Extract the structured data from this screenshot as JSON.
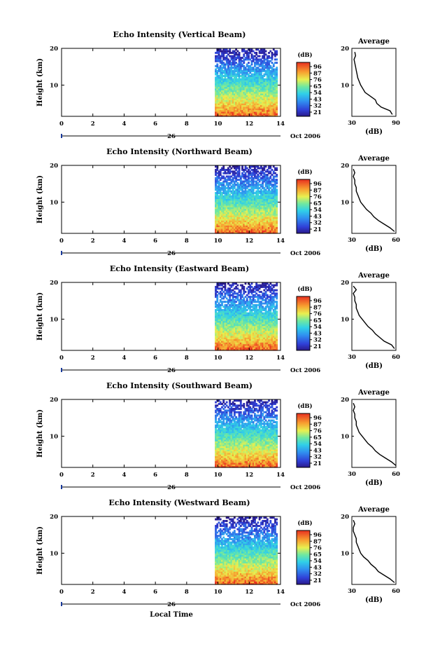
{
  "figure": {
    "xlabel": "Local Time",
    "date_label": "Oct 2006",
    "day_label": "26",
    "colorbar_unit": "(dB)",
    "avg_title": "Average",
    "avg_xlabel": "(dB)"
  },
  "chart_data": [
    {
      "type": "heatmap",
      "title": "Echo Intensity (Vertical Beam)",
      "ylabel": "Height (km)",
      "xlim": [
        0,
        14
      ],
      "ylim": [
        1.5,
        20
      ],
      "x_ticks": [
        "0",
        "2",
        "4",
        "6",
        "8",
        "10",
        "12",
        "14"
      ],
      "y_ticks": [
        "20",
        "10"
      ],
      "data_x_range": [
        9.8,
        13.8
      ],
      "colorbar": {
        "unit": "(dB)",
        "ticks": [
          "96",
          "87",
          "76",
          "65",
          "54",
          "43",
          "32",
          "21"
        ]
      },
      "average_profile": {
        "xlabel": "(dB)",
        "x_ticks": [
          "30",
          "90"
        ],
        "y_ticks": [
          "20",
          "10"
        ],
        "height_km": [
          2,
          3,
          4,
          5,
          6,
          7,
          8,
          9,
          10,
          11,
          12,
          13,
          14,
          15,
          16,
          17,
          18,
          19
        ],
        "db": [
          85,
          82,
          70,
          64,
          62,
          55,
          48,
          45,
          42,
          40,
          38,
          37,
          36,
          35,
          34,
          33,
          35,
          34
        ]
      }
    },
    {
      "type": "heatmap",
      "title": "Echo Intensity (Northward Beam)",
      "ylabel": "Height (km)",
      "xlim": [
        0,
        14
      ],
      "ylim": [
        1.5,
        20
      ],
      "x_ticks": [
        "0",
        "2",
        "4",
        "6",
        "8",
        "10",
        "12",
        "14"
      ],
      "y_ticks": [
        "20",
        "10"
      ],
      "data_x_range": [
        9.8,
        13.8
      ],
      "colorbar": {
        "unit": "(dB)",
        "ticks": [
          "96",
          "87",
          "76",
          "65",
          "54",
          "43",
          "32",
          "21"
        ]
      },
      "average_profile": {
        "xlabel": "(dB)",
        "x_ticks": [
          "30",
          "60"
        ],
        "y_ticks": [
          "20",
          "10"
        ],
        "height_km": [
          2,
          3,
          4,
          5,
          6,
          7,
          8,
          9,
          10,
          11,
          12,
          13,
          14,
          15,
          16,
          17,
          18,
          19
        ],
        "db": [
          59,
          56,
          52,
          48,
          45,
          43,
          40,
          38,
          36,
          35,
          34,
          33,
          33,
          32,
          32,
          31,
          32,
          31
        ]
      }
    },
    {
      "type": "heatmap",
      "title": "Echo Intensity (Eastward Beam)",
      "ylabel": "Height (km)",
      "xlim": [
        0,
        14
      ],
      "ylim": [
        1.5,
        20
      ],
      "x_ticks": [
        "0",
        "2",
        "4",
        "6",
        "8",
        "10",
        "12",
        "14"
      ],
      "y_ticks": [
        "20",
        "10"
      ],
      "data_x_range": [
        9.8,
        13.8
      ],
      "colorbar": {
        "unit": "(dB)",
        "ticks": [
          "96",
          "87",
          "76",
          "65",
          "54",
          "43",
          "32",
          "21"
        ]
      },
      "average_profile": {
        "xlabel": "(dB)",
        "x_ticks": [
          "30",
          "60"
        ],
        "y_ticks": [
          "20",
          "10"
        ],
        "height_km": [
          2,
          3,
          4,
          5,
          6,
          7,
          8,
          9,
          10,
          11,
          12,
          13,
          14,
          15,
          16,
          17,
          18,
          19
        ],
        "db": [
          59,
          57,
          52,
          49,
          46,
          44,
          41,
          39,
          37,
          35,
          34,
          33,
          33,
          32,
          32,
          31,
          33,
          31
        ]
      }
    },
    {
      "type": "heatmap",
      "title": "Echo Intensity (Southward Beam)",
      "ylabel": "Height (km)",
      "xlim": [
        0,
        14
      ],
      "ylim": [
        1.5,
        20
      ],
      "x_ticks": [
        "0",
        "2",
        "4",
        "6",
        "8",
        "10",
        "12",
        "14"
      ],
      "y_ticks": [
        "20",
        "10"
      ],
      "data_x_range": [
        9.8,
        13.8
      ],
      "colorbar": {
        "unit": "(dB)",
        "ticks": [
          "96",
          "87",
          "76",
          "65",
          "54",
          "43",
          "32",
          "21"
        ]
      },
      "average_profile": {
        "xlabel": "(dB)",
        "x_ticks": [
          "30",
          "60"
        ],
        "y_ticks": [
          "20",
          "10"
        ],
        "height_km": [
          2,
          3,
          4,
          5,
          6,
          7,
          8,
          9,
          10,
          11,
          12,
          13,
          14,
          15,
          16,
          17,
          18,
          19
        ],
        "db": [
          60,
          57,
          53,
          49,
          46,
          44,
          41,
          39,
          37,
          35,
          34,
          33,
          33,
          32,
          32,
          31,
          32,
          31
        ]
      }
    },
    {
      "type": "heatmap",
      "title": "Echo Intensity (Westward Beam)",
      "ylabel": "Height (km)",
      "xlim": [
        0,
        14
      ],
      "ylim": [
        1.5,
        20
      ],
      "x_ticks": [
        "0",
        "2",
        "4",
        "6",
        "8",
        "10",
        "12",
        "14"
      ],
      "y_ticks": [
        "20",
        "10"
      ],
      "data_x_range": [
        9.8,
        13.8
      ],
      "colorbar": {
        "unit": "(dB)",
        "ticks": [
          "96",
          "87",
          "76",
          "65",
          "54",
          "43",
          "32",
          "21"
        ]
      },
      "average_profile": {
        "xlabel": "(dB)",
        "x_ticks": [
          "30",
          "60"
        ],
        "y_ticks": [
          "20",
          "10"
        ],
        "height_km": [
          2,
          3,
          4,
          5,
          6,
          7,
          8,
          9,
          10,
          11,
          12,
          13,
          14,
          15,
          16,
          17,
          18,
          19
        ],
        "db": [
          59,
          56,
          52,
          48,
          46,
          43,
          41,
          38,
          36,
          35,
          34,
          33,
          33,
          32,
          31,
          31,
          32,
          31
        ]
      }
    }
  ]
}
